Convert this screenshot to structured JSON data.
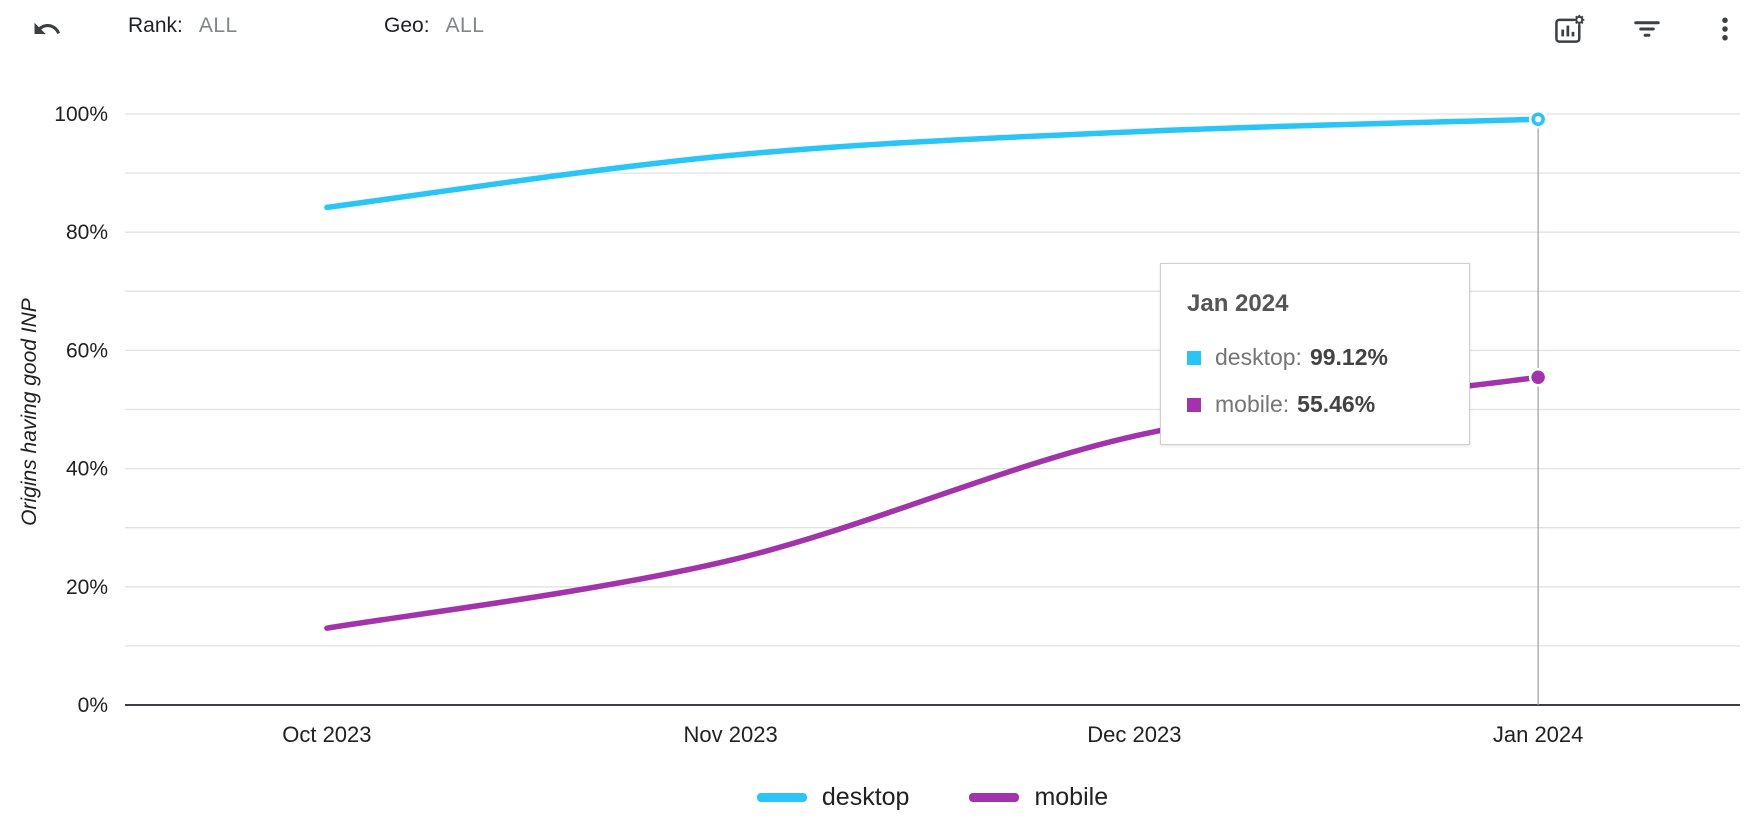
{
  "toolbar": {
    "rank_label": "Rank:",
    "rank_value": "ALL",
    "geo_label": "Geo:",
    "geo_value": "ALL"
  },
  "colors": {
    "desktop": "#29c5f6",
    "mobile": "#a233aa",
    "gridline": "#e2e2e2",
    "axis": "#3c4043",
    "crosshair": "#9aa0a6"
  },
  "tooltip": {
    "title": "Jan 2024",
    "rows": [
      {
        "series": "desktop",
        "label": "desktop:",
        "value": "99.12%"
      },
      {
        "series": "mobile",
        "label": "mobile:",
        "value": "55.46%"
      }
    ]
  },
  "chart_data": {
    "type": "line",
    "title": "",
    "xlabel": "",
    "ylabel": "Origins having good INP",
    "x": [
      "Oct 2023",
      "Nov 2023",
      "Dec 2023",
      "Jan 2024"
    ],
    "series": [
      {
        "name": "desktop",
        "color": "#29c5f6",
        "values": [
          84.2,
          93.0,
          97.0,
          99.12
        ]
      },
      {
        "name": "mobile",
        "color": "#a233aa",
        "values": [
          13.0,
          24.5,
          45.5,
          55.46
        ]
      }
    ],
    "ylim": [
      0,
      100
    ],
    "yticks": [
      0,
      20,
      40,
      60,
      80,
      100
    ],
    "ytick_suffix": "%",
    "grid_step": 10,
    "grid": true,
    "legend_position": "bottom",
    "highlight_x": "Jan 2024"
  }
}
